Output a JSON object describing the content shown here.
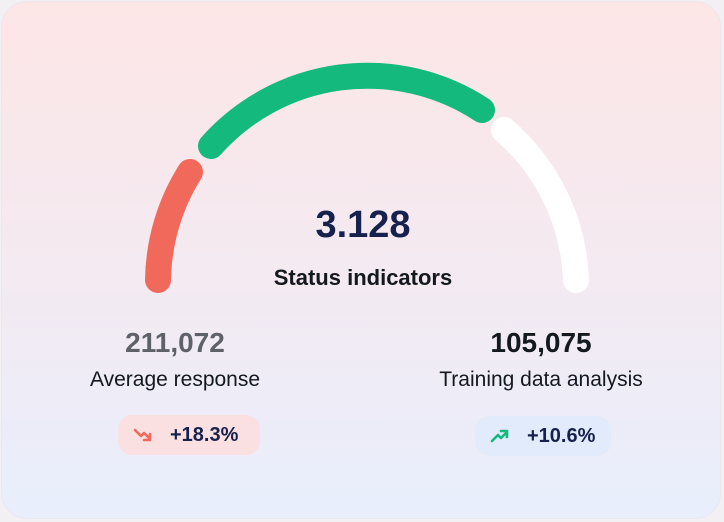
{
  "gauge": {
    "value": "3.128",
    "label": "Status indicators",
    "segments": [
      {
        "name": "red",
        "color": "#f0695a"
      },
      {
        "name": "green",
        "color": "#13b97d"
      },
      {
        "name": "white",
        "color": "#ffffff"
      }
    ]
  },
  "metrics": {
    "left": {
      "value": "211,072",
      "label": "Average response",
      "change": "+18.3%",
      "trend": "down",
      "icon": "trend-down-icon",
      "color": "#f0695a"
    },
    "right": {
      "value": "105,075",
      "label": "Training data analysis",
      "change": "+10.6%",
      "trend": "up",
      "icon": "trend-up-icon",
      "color": "#13b97d"
    }
  }
}
